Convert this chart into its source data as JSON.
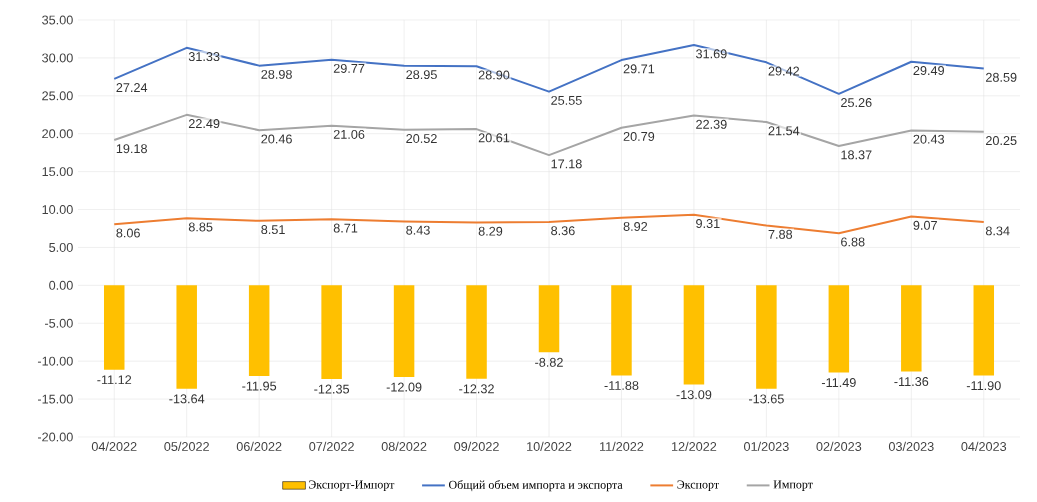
{
  "chart_data": {
    "type": "bar",
    "categories": [
      "04/2022",
      "05/2022",
      "06/2022",
      "07/2022",
      "08/2022",
      "09/2022",
      "10/2022",
      "11/2022",
      "12/2022",
      "01/2023",
      "02/2023",
      "03/2023",
      "04/2023"
    ],
    "series": [
      {
        "name": "Экспорт-Импорт",
        "color": "#ffc000",
        "values": [
          -11.12,
          -13.64,
          -11.95,
          -12.35,
          -12.09,
          -12.32,
          -8.82,
          -11.88,
          -13.09,
          -13.65,
          -11.49,
          -11.36,
          -11.9
        ],
        "value_labels": [
          "-11.12",
          "-13.64",
          "-11.95",
          "-12.35",
          "-12.09",
          "-12.32",
          "-8.82",
          "-11.88",
          "-13.09",
          "-13.65",
          "-11.49",
          "-11.36",
          "-11.90"
        ]
      },
      {
        "name": "Общий объем импорта и экспорта",
        "type": "line",
        "color": "#4472c4",
        "values": [
          27.24,
          31.33,
          28.98,
          29.77,
          28.95,
          28.9,
          25.55,
          29.71,
          31.69,
          29.42,
          25.26,
          29.49,
          28.59
        ],
        "value_labels": [
          "27.24",
          "31.33",
          "28.98",
          "29.77",
          "28.95",
          "28.90",
          "25.55",
          "29.71",
          "31.69",
          "29.42",
          "25.26",
          "29.49",
          "28.59"
        ]
      },
      {
        "name": "Экспорт",
        "type": "line",
        "color": "#ed7d31",
        "values": [
          8.06,
          8.85,
          8.51,
          8.71,
          8.43,
          8.29,
          8.36,
          8.92,
          9.31,
          7.88,
          6.88,
          9.07,
          8.34
        ],
        "value_labels": [
          "8.06",
          "8.85",
          "8.51",
          "8.71",
          "8.43",
          "8.29",
          "8.36",
          "8.92",
          "9.31",
          "7.88",
          "6.88",
          "9.07",
          "8.34"
        ]
      },
      {
        "name": "Импорт",
        "type": "line",
        "color": "#a5a5a5",
        "values": [
          19.18,
          22.49,
          20.46,
          21.06,
          20.52,
          20.61,
          17.18,
          20.79,
          22.39,
          21.54,
          18.37,
          20.43,
          20.25
        ],
        "value_labels": [
          "19.18",
          "22.49",
          "20.46",
          "21.06",
          "20.52",
          "20.61",
          "17.18",
          "20.79",
          "22.39",
          "21.54",
          "18.37",
          "20.43",
          "20.25"
        ]
      }
    ],
    "ylim": [
      -20,
      35
    ],
    "yticks": [
      {
        "value": -20,
        "label": "-20.00"
      },
      {
        "value": -15,
        "label": "-15.00"
      },
      {
        "value": -10,
        "label": "-10.00"
      },
      {
        "value": -5,
        "label": "-5.00"
      },
      {
        "value": 0,
        "label": "0.00"
      },
      {
        "value": 5,
        "label": "5.00"
      },
      {
        "value": 10,
        "label": "10.00"
      },
      {
        "value": 15,
        "label": "15.00"
      },
      {
        "value": 20,
        "label": "20.00"
      },
      {
        "value": 25,
        "label": "25.00"
      },
      {
        "value": 30,
        "label": "30.00"
      },
      {
        "value": 35,
        "label": "35.00"
      }
    ],
    "grid": true,
    "legend": "bottom",
    "line_style": "solid",
    "marker": "none"
  }
}
